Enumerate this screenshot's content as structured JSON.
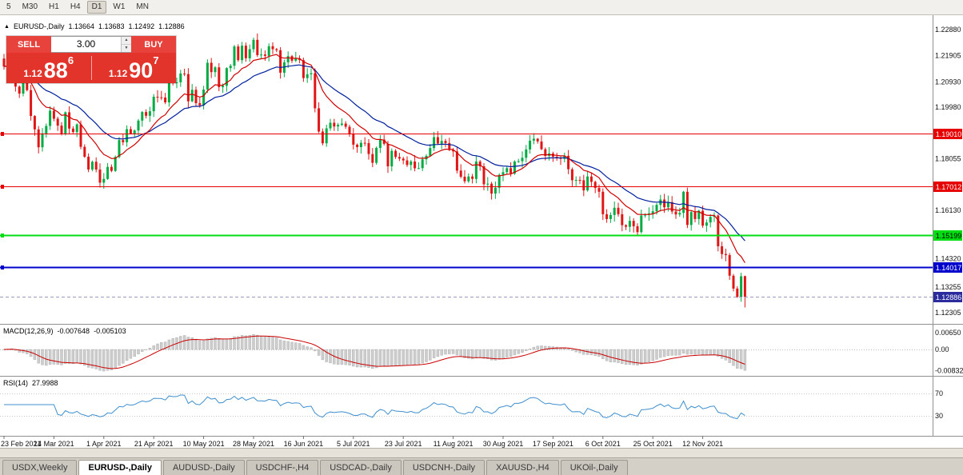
{
  "toolbar": {
    "timeframe_buttons": [
      "5",
      "M30",
      "H1",
      "H4",
      "D1",
      "W1",
      "MN"
    ],
    "active_timeframe": "D1"
  },
  "chart_header": {
    "collapse_icon": "▲",
    "symbol": "EURUSD-,Daily",
    "open": "1.13664",
    "high": "1.13683",
    "low": "1.12492",
    "close": "1.12886"
  },
  "trade_panel": {
    "sell_label": "SELL",
    "buy_label": "BUY",
    "lot_value": "3.00",
    "sell_price": {
      "prefix": "1.12",
      "big": "88",
      "sup": "6"
    },
    "buy_price": {
      "prefix": "1.12",
      "big": "90",
      "sup": "7"
    }
  },
  "price_axis": {
    "labels": [
      {
        "text": "1.22880",
        "value": 1.2288
      },
      {
        "text": "1.21905",
        "value": 1.21905
      },
      {
        "text": "1.20930",
        "value": 1.2093
      },
      {
        "text": "1.19980",
        "value": 1.1998
      },
      {
        "text": "1.18055",
        "value": 1.18055
      },
      {
        "text": "1.16130",
        "value": 1.1613
      },
      {
        "text": "1.14320",
        "value": 1.1432
      },
      {
        "text": "1.13255",
        "value": 1.13255
      },
      {
        "text": "1.12305",
        "value": 1.12305
      }
    ]
  },
  "horizontal_lines": [
    {
      "label": "1.19010",
      "value": 1.1901,
      "line_color": "#e60000",
      "badge_color": "#e60000",
      "text_color": "#ffffff",
      "style": "solid",
      "width": 1
    },
    {
      "label": "1.17012",
      "value": 1.17012,
      "line_color": "#e60000",
      "badge_color": "#e60000",
      "text_color": "#ffffff",
      "style": "solid",
      "width": 1
    },
    {
      "label": "1.15199",
      "value": 1.15199,
      "line_color": "#00dd12",
      "badge_color": "#00dd12",
      "text_color": "#000000",
      "style": "solid",
      "width": 2
    },
    {
      "label": "1.14017",
      "value": 1.14017,
      "line_color": "#0000cd",
      "badge_color": "#0000cd",
      "text_color": "#ffffff",
      "style": "solid",
      "width": 2
    }
  ],
  "current_price_line": {
    "label": "1.12886",
    "value": 1.12886,
    "line_color": "#9a9ac0",
    "badge_color": "#2b2b9e",
    "text_color": "#ffffff",
    "style": "dash",
    "width": 1
  },
  "indicators": {
    "macd": {
      "label": "MACD(12,26,9)",
      "value": "-0.007648",
      "signal_value": "-0.005103",
      "fast": 12,
      "slow": 26,
      "signal": 9,
      "histogram_color": "#cdcdcd",
      "signal_color": "#cc0000",
      "axis_labels": [
        {
          "text": "0.00650",
          "value": 0.0065
        },
        {
          "text": "0.00",
          "value": 0
        },
        {
          "text": "-0.00832",
          "value": -0.00832
        }
      ]
    },
    "rsi": {
      "label": "RSI(14)",
      "value": "27.9988",
      "period": 14,
      "line_color": "#3f8fce",
      "levels": [
        {
          "text": "70",
          "value": 70
        },
        {
          "text": "30",
          "value": 30
        }
      ]
    }
  },
  "chart_data": {
    "type": "candlestick",
    "title": "EURUSD-,Daily",
    "y_axis_range": [
      1.1188,
      1.2342
    ],
    "up_color": "#00ab44",
    "down_color": "#e01616",
    "ma_fast": {
      "period": 12,
      "color": "#d10000"
    },
    "ma_slow": {
      "period": 26,
      "color": "#001f9e"
    },
    "x_tick_labels": [
      "23 Feb 2021",
      "14 Mar 2021",
      "1 Apr 2021",
      "21 Apr 2021",
      "10 May 2021",
      "28 May 2021",
      "16 Jun 2021",
      "5 Jul 2021",
      "23 Jul 2021",
      "11 Aug 2021",
      "30 Aug 2021",
      "17 Sep 2021",
      "6 Oct 2021",
      "25 Oct 2021",
      "12 Nov 2021"
    ],
    "x_tick_indices": [
      0,
      13,
      26,
      39,
      52,
      65,
      78,
      91,
      104,
      117,
      130,
      143,
      156,
      169,
      182
    ],
    "closes": [
      1.215,
      1.2168,
      1.2175,
      1.2075,
      1.2049,
      1.209,
      1.2062,
      1.1965,
      1.1915,
      1.1848,
      1.19,
      1.1928,
      1.1985,
      1.1955,
      1.1929,
      1.1899,
      1.1979,
      1.1918,
      1.1905,
      1.1934,
      1.185,
      1.1813,
      1.1765,
      1.1794,
      1.1765,
      1.1716,
      1.173,
      1.1775,
      1.176,
      1.1812,
      1.1875,
      1.1867,
      1.1916,
      1.1899,
      1.1911,
      1.1948,
      1.198,
      1.1966,
      1.1983,
      1.2037,
      1.2035,
      1.2034,
      1.2016,
      1.2098,
      1.2089,
      1.2091,
      1.2124,
      1.2122,
      1.202,
      1.2063,
      1.2013,
      1.2005,
      1.2064,
      1.2164,
      1.2129,
      1.2147,
      1.2073,
      1.2078,
      1.2144,
      1.2153,
      1.2225,
      1.2174,
      1.2228,
      1.2181,
      1.2215,
      1.225,
      1.2193,
      1.2195,
      1.219,
      1.2226,
      1.2215,
      1.2211,
      1.2127,
      1.2166,
      1.2189,
      1.2172,
      1.218,
      1.2174,
      1.2107,
      1.2121,
      1.2125,
      1.1994,
      1.1907,
      1.1863,
      1.1919,
      1.194,
      1.1926,
      1.1932,
      1.1937,
      1.1925,
      1.1899,
      1.1858,
      1.1849,
      1.1865,
      1.1864,
      1.1823,
      1.179,
      1.1846,
      1.1877,
      1.1861,
      1.1777,
      1.1835,
      1.1812,
      1.1806,
      1.1799,
      1.1782,
      1.1795,
      1.177,
      1.177,
      1.1803,
      1.1816,
      1.1845,
      1.1886,
      1.1862,
      1.1872,
      1.1864,
      1.1838,
      1.1833,
      1.1761,
      1.1738,
      1.1721,
      1.1739,
      1.173,
      1.1795,
      1.1777,
      1.171,
      1.1712,
      1.1675,
      1.1697,
      1.1745,
      1.1755,
      1.177,
      1.175,
      1.1795,
      1.1796,
      1.1809,
      1.184,
      1.1873,
      1.188,
      1.187,
      1.1841,
      1.1816,
      1.1825,
      1.1813,
      1.181,
      1.1805,
      1.1816,
      1.1766,
      1.1725,
      1.1726,
      1.1725,
      1.1687,
      1.1739,
      1.1719,
      1.1696,
      1.1682,
      1.1598,
      1.158,
      1.1595,
      1.1622,
      1.1598,
      1.1557,
      1.1551,
      1.1573,
      1.1553,
      1.1531,
      1.1593,
      1.1596,
      1.1601,
      1.1609,
      1.1633,
      1.1653,
      1.1624,
      1.1643,
      1.1608,
      1.1597,
      1.1603,
      1.1682,
      1.1558,
      1.1606,
      1.158,
      1.1611,
      1.1555,
      1.1567,
      1.1588,
      1.1593,
      1.1478,
      1.1449,
      1.1445,
      1.1368,
      1.132,
      1.1289,
      1.1366,
      1.12886
    ],
    "last_candle": {
      "open": 1.13664,
      "high": 1.13683,
      "low": 1.12492,
      "close": 1.12886
    }
  },
  "tabs": {
    "items": [
      "USDX,Weekly",
      "EURUSD-,Daily",
      "AUDUSD-,Daily",
      "USDCHF-,H4",
      "USDCAD-,Daily",
      "USDCNH-,Daily",
      "XAUUSD-,H4",
      "UKOil-,Daily"
    ],
    "active": "EURUSD-,Daily"
  }
}
